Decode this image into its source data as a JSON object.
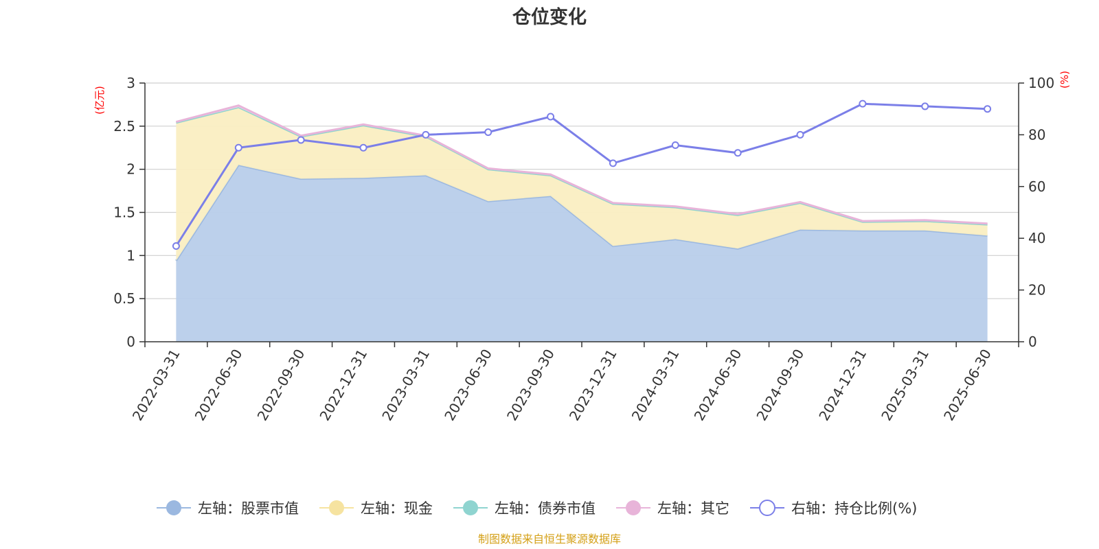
{
  "chart_data": {
    "type": "area",
    "title": "仓位变化",
    "categories": [
      "2022-03-31",
      "2022-06-30",
      "2022-09-30",
      "2022-12-31",
      "2023-03-31",
      "2023-06-30",
      "2023-09-30",
      "2023-12-31",
      "2024-03-31",
      "2024-06-30",
      "2024-09-30",
      "2024-12-31",
      "2025-03-31",
      "2025-06-30"
    ],
    "left_axis": {
      "unit": "(亿元)",
      "min": 0,
      "max": 3,
      "ticks": [
        "0",
        "0.5",
        "1",
        "1.5",
        "2",
        "2.5",
        "3"
      ],
      "unit_color": "#ff0000"
    },
    "right_axis": {
      "unit": "(%)",
      "min": 0,
      "max": 100,
      "ticks": [
        "0",
        "20",
        "40",
        "60",
        "80",
        "100"
      ],
      "unit_color": "#ff0000"
    },
    "stacked_series": [
      {
        "name": "左轴：股票市值",
        "axis": "left",
        "color": "#9bb8e0",
        "fill": "#b8cdea",
        "values": [
          0.94,
          2.05,
          1.89,
          1.9,
          1.93,
          1.63,
          1.69,
          1.11,
          1.19,
          1.08,
          1.3,
          1.29,
          1.29,
          1.23
        ]
      },
      {
        "name": "左轴：现金",
        "axis": "left",
        "color": "#f6e3a0",
        "fill": "#faeec2",
        "values": [
          1.6,
          0.67,
          0.49,
          0.61,
          0.45,
          0.37,
          0.24,
          0.49,
          0.37,
          0.39,
          0.31,
          0.1,
          0.11,
          0.13
        ]
      },
      {
        "name": "左轴：债券市值",
        "axis": "left",
        "color": "#8fd4d0",
        "fill": "#bfe6e3",
        "values": [
          0,
          0,
          0,
          0,
          0,
          0,
          0,
          0,
          0,
          0,
          0,
          0,
          0,
          0
        ]
      },
      {
        "name": "左轴：其它",
        "axis": "left",
        "color": "#e8b4d9",
        "fill": "#f2d4ea",
        "values": [
          0.01,
          0.02,
          0.01,
          0.01,
          0.01,
          0.01,
          0.01,
          0.01,
          0.01,
          0.01,
          0.01,
          0.01,
          0.01,
          0.01
        ]
      }
    ],
    "line_series": {
      "name": "右轴：持仓比例(%)",
      "axis": "right",
      "color": "#7b7fe8",
      "values": [
        37,
        75,
        78,
        75,
        80,
        81,
        87,
        69,
        76,
        73,
        80,
        92,
        91,
        90
      ]
    },
    "grid": true,
    "legend_position": "bottom"
  },
  "legend": {
    "items": [
      {
        "label": "左轴：股票市值",
        "color": "#9bb8e0",
        "style": "filled"
      },
      {
        "label": "左轴：现金",
        "color": "#f6e3a0",
        "style": "filled"
      },
      {
        "label": "左轴：债券市值",
        "color": "#8fd4d0",
        "style": "filled"
      },
      {
        "label": "左轴：其它",
        "color": "#e8b4d9",
        "style": "filled"
      },
      {
        "label": "右轴：持仓比例(%)",
        "color": "#7b7fe8",
        "style": "hollow"
      }
    ]
  },
  "source_text": "制图数据来自恒生聚源数据库"
}
